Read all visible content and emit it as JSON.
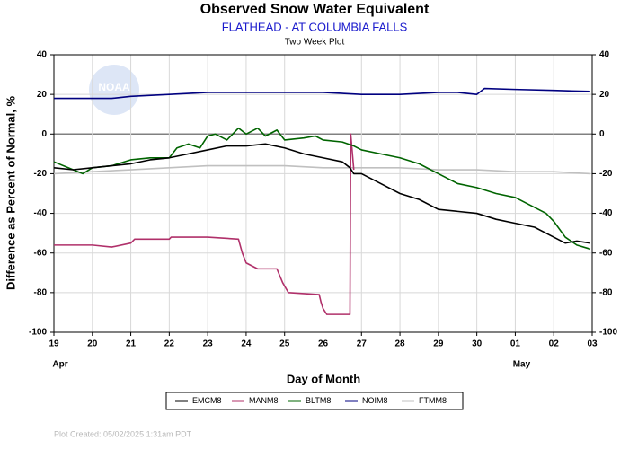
{
  "chart_data": {
    "type": "line",
    "title": "Observed Snow Water Equivalent",
    "subtitle": "FLATHEAD - AT COLUMBIA FALLS",
    "plot_label": "Two Week Plot",
    "y_label": "Difference as Percent of Normal, %",
    "x_label": "Day of Month",
    "footer": "Plot Created: 05/02/2025 1:31am PDT",
    "watermark": "NOAA",
    "grid": true,
    "xlim": [
      0,
      14
    ],
    "xticks": [
      {
        "value": 0,
        "label": "19"
      },
      {
        "value": 1,
        "label": "20"
      },
      {
        "value": 2,
        "label": "21"
      },
      {
        "value": 3,
        "label": "22"
      },
      {
        "value": 4,
        "label": "23"
      },
      {
        "value": 5,
        "label": "24"
      },
      {
        "value": 6,
        "label": "25"
      },
      {
        "value": 7,
        "label": "26"
      },
      {
        "value": 8,
        "label": "27"
      },
      {
        "value": 9,
        "label": "28"
      },
      {
        "value": 10,
        "label": "29"
      },
      {
        "value": 11,
        "label": "30"
      },
      {
        "value": 12,
        "label": "01"
      },
      {
        "value": 13,
        "label": "02"
      },
      {
        "value": 14,
        "label": "03"
      }
    ],
    "month_labels": [
      {
        "value": 0,
        "label": "Apr"
      },
      {
        "value": 12,
        "label": "May"
      }
    ],
    "ylim": [
      -100,
      40
    ],
    "yticks": [
      -100,
      -80,
      -60,
      -40,
      -20,
      0,
      20,
      40
    ],
    "y2lim": [
      -100,
      40
    ],
    "y2ticks": [
      -100,
      -80,
      -60,
      -40,
      -20,
      0,
      20,
      40
    ],
    "series": [
      {
        "name": "EMCM8",
        "color": "#000000",
        "x": [
          0,
          0.5,
          1,
          1.5,
          2,
          2.5,
          3,
          3.5,
          4,
          4.5,
          5,
          5.5,
          6,
          6.5,
          7,
          7.5,
          7.7,
          7.8,
          8,
          8.5,
          9,
          9.5,
          10,
          10.5,
          11,
          11.5,
          12,
          12.5,
          13,
          13.3,
          13.6,
          13.95
        ],
        "values": [
          -17,
          -18,
          -17,
          -16,
          -15,
          -13,
          -12,
          -10,
          -8,
          -6,
          -6,
          -5,
          -7,
          -10,
          -12,
          -14,
          -17,
          -20,
          -20,
          -25,
          -30,
          -33,
          -38,
          -39,
          -40,
          -43,
          -45,
          -47,
          -52,
          -55,
          -54,
          -55
        ]
      },
      {
        "name": "MANM8",
        "color": "#b0306a",
        "x": [
          0,
          1,
          1.5,
          2,
          2.1,
          3,
          3.05,
          4,
          4.8,
          4.9,
          5.0,
          5.3,
          5.8,
          5.95,
          6.1,
          6.9,
          6.95,
          7.0,
          7.1,
          7.7,
          7.72,
          7.8
        ],
        "values": [
          -56,
          -56,
          -57,
          -55,
          -53,
          -53,
          -52,
          -52,
          -53,
          -60,
          -65,
          -68,
          -68,
          -75,
          -80,
          -81,
          -85,
          -88,
          -91,
          -91,
          0,
          -18
        ]
      },
      {
        "name": "BLTM8",
        "color": "#006400",
        "x": [
          0,
          0.5,
          0.75,
          1,
          1.5,
          2,
          2.5,
          3,
          3.2,
          3.5,
          3.8,
          4,
          4.2,
          4.5,
          4.8,
          5,
          5.3,
          5.5,
          5.8,
          6,
          6.5,
          6.8,
          7,
          7.5,
          7.8,
          8,
          8.5,
          9,
          9.5,
          10,
          10.5,
          11,
          11.5,
          12,
          12.5,
          12.8,
          13,
          13.3,
          13.6,
          13.95
        ],
        "values": [
          -14,
          -18,
          -20,
          -17,
          -16,
          -13,
          -12,
          -12,
          -7,
          -5,
          -7,
          -1,
          0,
          -3,
          3,
          0,
          3,
          -1,
          2,
          -3,
          -2,
          -1,
          -3,
          -4,
          -6,
          -8,
          -10,
          -12,
          -15,
          -20,
          -25,
          -27,
          -30,
          -32,
          -37,
          -40,
          -44,
          -52,
          -56,
          -58
        ]
      },
      {
        "name": "NOIM8",
        "color": "#000080",
        "x": [
          0,
          1,
          1.5,
          2,
          3,
          4,
          6,
          7,
          8,
          9,
          10,
          10.5,
          11,
          11.2,
          12,
          13,
          13.95
        ],
        "values": [
          18,
          18,
          18,
          19,
          20,
          21,
          21,
          21,
          20,
          20,
          21,
          21,
          20,
          23,
          22.5,
          22,
          21.5
        ]
      },
      {
        "name": "FTMM8",
        "color": "#c0c0c0",
        "x": [
          0,
          1,
          2,
          3,
          4,
          5,
          6,
          7,
          8,
          9,
          10,
          11,
          12,
          13,
          13.95
        ],
        "values": [
          -20,
          -19,
          -18,
          -17,
          -16,
          -16,
          -16,
          -17,
          -17,
          -17,
          -18,
          -18,
          -19,
          -19,
          -20
        ]
      }
    ]
  }
}
